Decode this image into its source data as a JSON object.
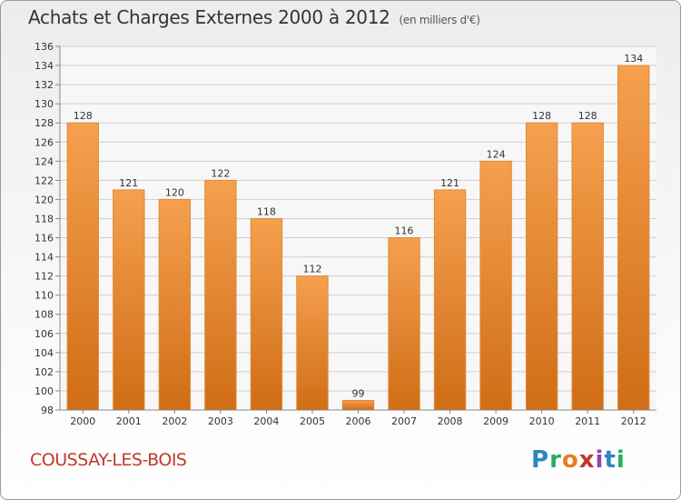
{
  "header": {
    "title": "Achats et Charges Externes 2000 à 2012",
    "unit": "(en milliers d'€)"
  },
  "footer": {
    "commune": "COUSSAY-LES-BOIS",
    "brand": [
      "P",
      "r",
      "o",
      "x",
      "i",
      "t",
      "i"
    ]
  },
  "colors": {
    "bar_light": "#f5a04f",
    "bar_dark": "#d06d16",
    "grid": "#cfcfcf",
    "title": "#333333",
    "commune": "#c0392b"
  },
  "chart_data": {
    "type": "bar",
    "title": "Achats et Charges Externes 2000 à 2012",
    "subtitle": "(en milliers d'€)",
    "categories": [
      "2000",
      "2001",
      "2002",
      "2003",
      "2004",
      "2005",
      "2006",
      "2007",
      "2008",
      "2009",
      "2010",
      "2011",
      "2012"
    ],
    "values": [
      128,
      121,
      120,
      122,
      118,
      112,
      99,
      116,
      121,
      124,
      128,
      128,
      134
    ],
    "ylim": [
      98,
      136
    ],
    "yticks": [
      98,
      100,
      102,
      104,
      106,
      108,
      110,
      112,
      114,
      116,
      118,
      120,
      122,
      124,
      126,
      128,
      130,
      132,
      134,
      136
    ],
    "grid": true,
    "legend": "none"
  }
}
